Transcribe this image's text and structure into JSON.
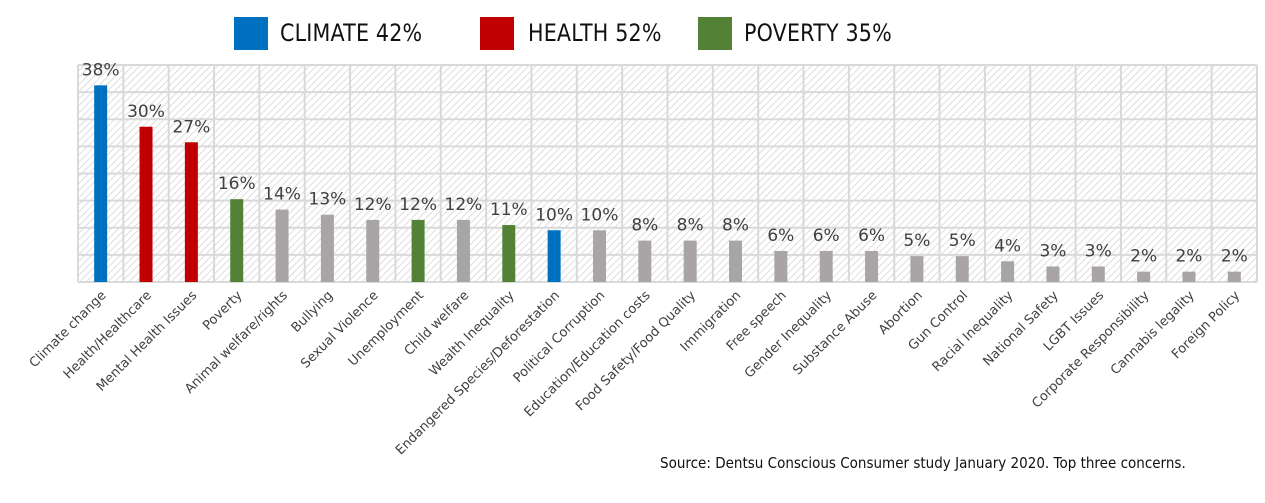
{
  "legend": [
    {
      "label": "CLIMATE 42%",
      "color": "#0070C0"
    },
    {
      "label": "HEALTH 52%",
      "color": "#C00000"
    },
    {
      "label": "POVERTY 35%",
      "color": "#538135"
    }
  ],
  "source": "Source: Dentsu Conscious Consumer study January 2020. Top three concerns.",
  "chart_data": {
    "type": "bar",
    "title": "",
    "xlabel": "",
    "ylabel": "",
    "ylim": [
      0,
      40
    ],
    "grid": true,
    "legend_position": "top",
    "value_suffix": "%",
    "categories": [
      "Climate change",
      "Health/Healthcare",
      "Mental Health Issues",
      "Poverty",
      "Animal welfare/rights",
      "Bullying",
      "Sexual Violence",
      "Unemployment",
      "Child welfare",
      "Wealth Inequality",
      "Endangered Species/Deforestation",
      "Political Corruption",
      "Education/Education costs",
      "Food Safety/Food Quality",
      "Immigration",
      "Free speech",
      "Gender Inequality",
      "Substance Abuse",
      "Abortion",
      "Gun Control",
      "Racial Inequality",
      "National Safety",
      "LGBT Issues",
      "Corporate Responsibility",
      "Cannabis legality",
      "Foreign Policy"
    ],
    "values": [
      38,
      30,
      27,
      16,
      14,
      13,
      12,
      12,
      12,
      11,
      10,
      10,
      8,
      8,
      8,
      6,
      6,
      6,
      5,
      5,
      4,
      3,
      3,
      2,
      2,
      2
    ],
    "groups": [
      "climate",
      "health",
      "health",
      "poverty",
      "other",
      "other",
      "other",
      "poverty",
      "other",
      "poverty",
      "climate",
      "other",
      "other",
      "other",
      "other",
      "other",
      "other",
      "other",
      "other",
      "other",
      "other",
      "other",
      "other",
      "other",
      "other",
      "other"
    ],
    "group_colors": {
      "climate": "#0070C0",
      "health": "#C00000",
      "poverty": "#538135",
      "other": "#A9A5A6"
    },
    "legend": [
      {
        "name": "CLIMATE",
        "value": 42,
        "color": "#0070C0"
      },
      {
        "name": "HEALTH",
        "value": 52,
        "color": "#C00000"
      },
      {
        "name": "POVERTY",
        "value": 35,
        "color": "#538135"
      }
    ]
  }
}
